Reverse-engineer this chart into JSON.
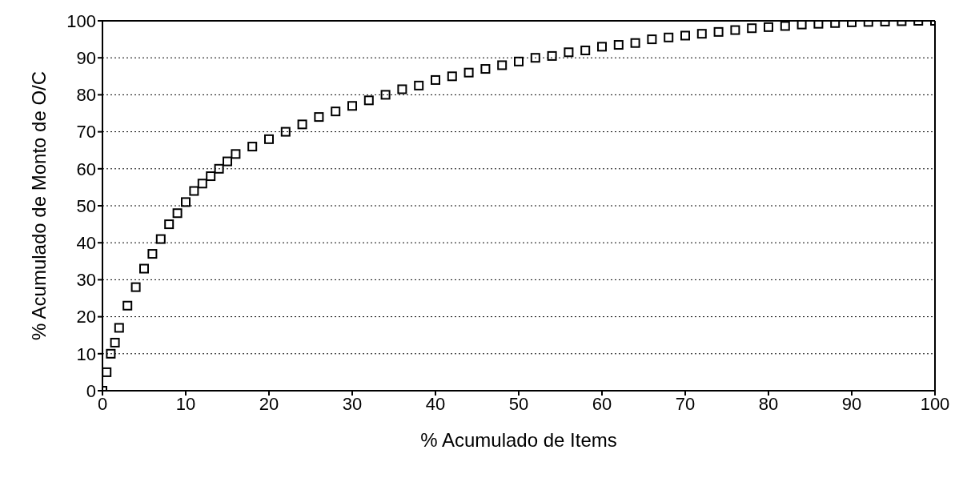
{
  "chart_data": {
    "type": "scatter",
    "xlabel": "% Acumulado de Items",
    "ylabel": "% Acumulado de Monto de O/C",
    "x": [
      0,
      0.5,
      1,
      1.5,
      2,
      3,
      4,
      5,
      6,
      7,
      8,
      9,
      10,
      11,
      12,
      13,
      14,
      15,
      16,
      18,
      20,
      22,
      24,
      26,
      28,
      30,
      32,
      34,
      36,
      38,
      40,
      42,
      44,
      46,
      48,
      50,
      52,
      54,
      56,
      58,
      60,
      62,
      64,
      66,
      68,
      70,
      72,
      74,
      76,
      78,
      80,
      82,
      84,
      86,
      88,
      90,
      92,
      94,
      96,
      98,
      100
    ],
    "series": [
      {
        "color": "#000000",
        "values": [
          0,
          5,
          10,
          13,
          17,
          23,
          28,
          33,
          37,
          41,
          45,
          48,
          51,
          54,
          56,
          58,
          60,
          62,
          64,
          66,
          68,
          70,
          72,
          74,
          75.5,
          77,
          78.5,
          80,
          81.5,
          82.5,
          84,
          85,
          86,
          87,
          88,
          89,
          90,
          90.5,
          91.5,
          92,
          93,
          93.5,
          94,
          95,
          95.5,
          96,
          96.5,
          97,
          97.5,
          98,
          98.3,
          98.6,
          99,
          99.2,
          99.4,
          99.6,
          99.7,
          99.8,
          99.9,
          100,
          100
        ]
      }
    ],
    "xlim": [
      0,
      100
    ],
    "xticks": [
      0,
      10,
      20,
      30,
      40,
      50,
      60,
      70,
      80,
      90,
      100
    ],
    "ylim": [
      0,
      100
    ],
    "yticks": [
      0,
      10,
      20,
      30,
      40,
      50,
      60,
      70,
      80,
      90,
      100
    ],
    "grid": "y",
    "marker": "square"
  }
}
